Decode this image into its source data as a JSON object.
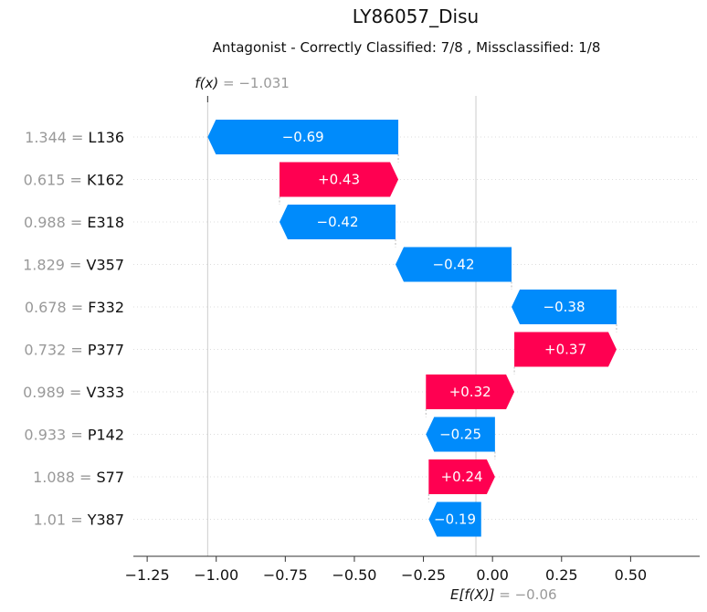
{
  "chart_data": {
    "type": "waterfall",
    "title": "LY86057_Disu",
    "subtitle": "Antagonist - Correctly Classified: 7/8 , Missclassified: 1/8",
    "fx_label": "f(x)",
    "fx_value": "−1.031",
    "fx_numeric": -1.031,
    "ex_label": "E[f(X)]",
    "ex_value": "−0.06",
    "ex_numeric": -0.06,
    "xlim": [
      -1.3,
      0.75
    ],
    "xticks": [
      -1.25,
      -1.0,
      -0.75,
      -0.5,
      -0.25,
      0.0,
      0.25,
      0.5
    ],
    "xtick_labels": [
      "−1.25",
      "−1.00",
      "−0.75",
      "−0.50",
      "−0.25",
      "0.00",
      "0.25",
      "0.50"
    ],
    "features": [
      {
        "value": "1.344",
        "name": "L136",
        "contribution": -0.69,
        "label": "−0.69"
      },
      {
        "value": "0.615",
        "name": "K162",
        "contribution": 0.43,
        "label": "+0.43"
      },
      {
        "value": "0.988",
        "name": "E318",
        "contribution": -0.42,
        "label": "−0.42"
      },
      {
        "value": "1.829",
        "name": "V357",
        "contribution": -0.42,
        "label": "−0.42"
      },
      {
        "value": "0.678",
        "name": "F332",
        "contribution": -0.38,
        "label": "−0.38"
      },
      {
        "value": "0.732",
        "name": "P377",
        "contribution": 0.37,
        "label": "+0.37"
      },
      {
        "value": "0.989",
        "name": "V333",
        "contribution": 0.32,
        "label": "+0.32"
      },
      {
        "value": "0.933",
        "name": "P142",
        "contribution": -0.25,
        "label": "−0.25"
      },
      {
        "value": "1.088",
        "name": "S77",
        "contribution": 0.24,
        "label": "+0.24"
      },
      {
        "value": "1.01",
        "name": "Y387",
        "contribution": -0.19,
        "label": "−0.19"
      }
    ],
    "colors": {
      "positive": "#ff0051",
      "negative": "#008bfb",
      "grid": "#cccccc",
      "muted": "#999999"
    }
  }
}
